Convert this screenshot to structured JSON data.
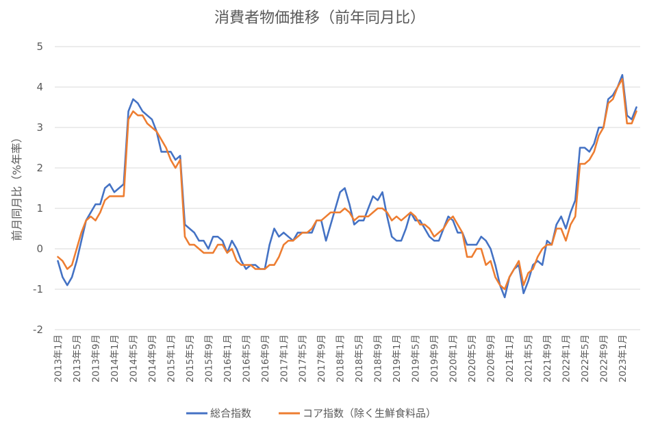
{
  "chart_data": {
    "type": "line",
    "title": "消費者物価推移（前年同月比）",
    "xlabel": "",
    "ylabel": "前月同月比（%年率）",
    "ylim": [
      -2,
      5
    ],
    "yticks": [
      -2,
      -1,
      0,
      1,
      2,
      3,
      4,
      5
    ],
    "grid": "horizontal",
    "legend": "bottom",
    "x_tick_labels": [
      "2013年1月",
      "2013年5月",
      "2013年9月",
      "2014年1月",
      "2014年5月",
      "2014年9月",
      "2015年1月",
      "2015年5月",
      "2015年9月",
      "2016年1月",
      "2016年5月",
      "2016年9月",
      "2017年1月",
      "2017年5月",
      "2017年9月",
      "2018年1月",
      "2018年5月",
      "2018年9月",
      "2019年1月",
      "2019年5月",
      "2019年9月",
      "2020年1月",
      "2020年5月",
      "2020年9月",
      "2021年1月",
      "2021年5月",
      "2021年9月",
      "2022年1月",
      "2022年5月",
      "2022年9月",
      "2023年1月"
    ],
    "x_start": "2013-01",
    "x_end": "2023-04",
    "series": [
      {
        "name": "総合指数",
        "color": "#4472C4",
        "values": [
          -0.3,
          -0.7,
          -0.9,
          -0.7,
          -0.3,
          0.2,
          0.7,
          0.9,
          1.1,
          1.1,
          1.5,
          1.6,
          1.4,
          1.5,
          1.6,
          3.4,
          3.7,
          3.6,
          3.4,
          3.3,
          3.2,
          2.9,
          2.4,
          2.4,
          2.4,
          2.2,
          2.3,
          0.6,
          0.5,
          0.4,
          0.2,
          0.2,
          0.0,
          0.3,
          0.3,
          0.2,
          -0.1,
          0.2,
          0.0,
          -0.3,
          -0.5,
          -0.4,
          -0.4,
          -0.5,
          -0.5,
          0.1,
          0.5,
          0.3,
          0.4,
          0.3,
          0.2,
          0.4,
          0.4,
          0.4,
          0.4,
          0.7,
          0.7,
          0.2,
          0.6,
          1.0,
          1.4,
          1.5,
          1.1,
          0.6,
          0.7,
          0.7,
          1.0,
          1.3,
          1.2,
          1.4,
          0.8,
          0.3,
          0.2,
          0.2,
          0.5,
          0.9,
          0.7,
          0.7,
          0.5,
          0.3,
          0.2,
          0.2,
          0.5,
          0.8,
          0.7,
          0.4,
          0.4,
          0.1,
          0.1,
          0.1,
          0.3,
          0.2,
          0.0,
          -0.4,
          -0.9,
          -1.2,
          -0.7,
          -0.5,
          -0.4,
          -1.1,
          -0.8,
          -0.4,
          -0.3,
          -0.4,
          0.2,
          0.1,
          0.6,
          0.8,
          0.5,
          0.9,
          1.2,
          2.5,
          2.5,
          2.4,
          2.6,
          3.0,
          3.0,
          3.7,
          3.8,
          4.0,
          4.3,
          3.3,
          3.2,
          3.5
        ]
      },
      {
        "name": "コア指数（除く生鮮食料品）",
        "color": "#ED7D31",
        "values": [
          -0.2,
          -0.3,
          -0.5,
          -0.4,
          0.0,
          0.4,
          0.7,
          0.8,
          0.7,
          0.9,
          1.2,
          1.3,
          1.3,
          1.3,
          1.3,
          3.2,
          3.4,
          3.3,
          3.3,
          3.1,
          3.0,
          2.9,
          2.7,
          2.5,
          2.2,
          2.0,
          2.2,
          0.3,
          0.1,
          0.1,
          0.0,
          -0.1,
          -0.1,
          -0.1,
          0.1,
          0.1,
          -0.1,
          0.0,
          -0.3,
          -0.4,
          -0.4,
          -0.4,
          -0.5,
          -0.5,
          -0.5,
          -0.4,
          -0.4,
          -0.2,
          0.1,
          0.2,
          0.2,
          0.3,
          0.4,
          0.4,
          0.5,
          0.7,
          0.7,
          0.8,
          0.9,
          0.9,
          0.9,
          1.0,
          0.9,
          0.7,
          0.8,
          0.8,
          0.8,
          0.9,
          1.0,
          1.0,
          0.9,
          0.7,
          0.8,
          0.7,
          0.8,
          0.9,
          0.8,
          0.6,
          0.6,
          0.5,
          0.3,
          0.4,
          0.5,
          0.7,
          0.8,
          0.6,
          0.4,
          -0.2,
          -0.2,
          0.0,
          0.0,
          -0.4,
          -0.3,
          -0.7,
          -0.9,
          -1.0,
          -0.7,
          -0.5,
          -0.3,
          -0.9,
          -0.6,
          -0.5,
          -0.2,
          0.0,
          0.1,
          0.1,
          0.5,
          0.5,
          0.2,
          0.6,
          0.8,
          2.1,
          2.1,
          2.2,
          2.4,
          2.8,
          3.0,
          3.6,
          3.7,
          4.0,
          4.2,
          3.1,
          3.1,
          3.4
        ]
      }
    ]
  }
}
